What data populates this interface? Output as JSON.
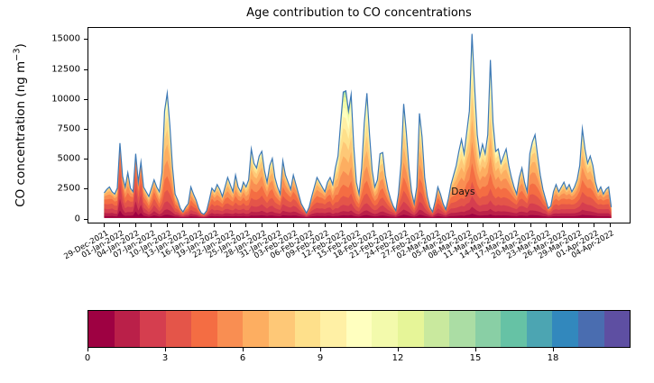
{
  "chart_data": {
    "type": "area",
    "subtype": "age-stacked-area",
    "title": "Age contribution to CO concentrations",
    "ylabel": {
      "prefix": "CO concentration (ng m",
      "sup": "−3",
      "suffix": ")"
    },
    "y_ticks": [
      0,
      2500,
      5000,
      7500,
      10000,
      12500,
      15000
    ],
    "ylim": [
      -400,
      16000
    ],
    "xlim_days": [
      -3,
      100
    ],
    "x_tick_days": [
      0,
      3,
      6,
      9,
      12,
      15,
      18,
      21,
      24,
      27,
      30,
      33,
      36,
      39,
      42,
      45,
      48,
      51,
      54,
      57,
      60,
      63,
      66,
      69,
      72,
      75,
      78,
      81,
      84,
      87,
      90,
      93,
      96
    ],
    "x_tick_labels": [
      "29-Dec-2021",
      "01-Jan-2022",
      "04-Jan-2022",
      "07-Jan-2022",
      "10-Jan-2022",
      "13-Jan-2022",
      "16-Jan-2022",
      "19-Jan-2022",
      "22-Jan-2022",
      "25-Jan-2022",
      "28-Jan-2022",
      "31-Jan-2022",
      "03-Feb-2022",
      "06-Feb-2022",
      "09-Feb-2022",
      "12-Feb-2022",
      "15-Feb-2022",
      "18-Feb-2022",
      "21-Feb-2022",
      "24-Feb-2022",
      "27-Feb-2022",
      "02-Mar-2022",
      "05-Mar-2022",
      "08-Mar-2022",
      "11-Mar-2022",
      "14-Mar-2022",
      "17-Mar-2022",
      "20-Mar-2022",
      "23-Mar-2022",
      "26-Mar-2022",
      "29-Mar-2022",
      "01-Apr-2022",
      "04-Apr-2022"
    ],
    "points_per_day": 2,
    "start_date": "29-Dec-2021",
    "totals": [
      2100,
      2400,
      2600,
      2200,
      2000,
      2500,
      6300,
      3500,
      2600,
      3800,
      2500,
      2200,
      5400,
      3000,
      4700,
      2600,
      2200,
      1800,
      2500,
      3200,
      2600,
      2200,
      3800,
      9000,
      10500,
      7800,
      4300,
      2000,
      1500,
      800,
      500,
      900,
      1200,
      2600,
      2000,
      1500,
      800,
      400,
      300,
      600,
      1500,
      2500,
      2200,
      2800,
      2400,
      1800,
      2600,
      3400,
      2800,
      2200,
      3600,
      2600,
      2200,
      3000,
      2600,
      3200,
      5800,
      4600,
      4200,
      5200,
      5600,
      4000,
      3000,
      4400,
      5000,
      3400,
      2600,
      2000,
      4800,
      3600,
      3000,
      2400,
      3600,
      2800,
      2000,
      1200,
      800,
      400,
      900,
      1800,
      2600,
      3400,
      3000,
      2600,
      2200,
      3000,
      3400,
      2800,
      4200,
      5200,
      8000,
      10600,
      10700,
      9000,
      10400,
      6000,
      3000,
      2000,
      4200,
      8000,
      10500,
      7000,
      4000,
      2600,
      3200,
      5400,
      5500,
      3600,
      2400,
      1600,
      1000,
      600,
      2000,
      4600,
      9600,
      7200,
      4200,
      2200,
      1200,
      2600,
      8800,
      6800,
      3400,
      1800,
      900,
      500,
      1400,
      2600,
      2000,
      1200,
      700,
      1600,
      2800,
      3600,
      4400,
      5600,
      6600,
      5400,
      7200,
      9000,
      15500,
      11000,
      7000,
      5200,
      6200,
      5400,
      7000,
      13300,
      8000,
      5600,
      5800,
      4600,
      5200,
      5800,
      4400,
      3400,
      2600,
      2000,
      3400,
      4200,
      3000,
      2200,
      5400,
      6400,
      7000,
      5200,
      3600,
      2400,
      1600,
      800,
      1000,
      2200,
      2800,
      2200,
      2600,
      3000,
      2400,
      2800,
      2200,
      2600,
      3200,
      4400,
      7500,
      5800,
      4600,
      5200,
      4400,
      3000,
      2200,
      2600,
      2000,
      2400,
      2600,
      900
    ],
    "mean_age_days": [
      3.5,
      4.0,
      4.2,
      3.6,
      3.8,
      4.4,
      3.0,
      3.4,
      4.0,
      4.5,
      3.6,
      3.2,
      3.0,
      3.5,
      3.2,
      3.8,
      4.0,
      4.5,
      4.2,
      3.8,
      4.0,
      4.6,
      5.0,
      6.0,
      6.2,
      5.8,
      5.0,
      4.4,
      4.0,
      3.6,
      3.2,
      3.6,
      4.0,
      4.4,
      4.2,
      3.8,
      3.4,
      3.0,
      2.8,
      3.2,
      3.6,
      4.0,
      4.2,
      4.6,
      4.4,
      4.0,
      4.2,
      4.8,
      4.6,
      4.2,
      4.8,
      4.4,
      4.0,
      4.4,
      4.6,
      5.0,
      5.4,
      5.0,
      4.8,
      5.2,
      5.0,
      4.6,
      4.4,
      4.8,
      5.0,
      4.6,
      4.2,
      3.8,
      4.6,
      4.2,
      4.0,
      3.6,
      4.2,
      3.8,
      3.6,
      3.2,
      3.0,
      2.8,
      3.2,
      3.8,
      4.2,
      4.6,
      4.4,
      4.0,
      3.8,
      4.2,
      4.4,
      4.8,
      5.2,
      5.8,
      6.4,
      7.0,
      7.2,
      6.8,
      6.6,
      6.0,
      5.0,
      4.4,
      5.0,
      6.0,
      6.6,
      6.0,
      5.2,
      4.6,
      4.8,
      5.4,
      5.2,
      4.6,
      4.2,
      3.8,
      3.2,
      3.0,
      3.8,
      4.8,
      6.0,
      5.6,
      4.8,
      4.2,
      3.8,
      4.2,
      5.8,
      5.4,
      4.6,
      4.0,
      3.4,
      3.0,
      3.6,
      4.0,
      3.8,
      3.4,
      3.0,
      3.6,
      4.2,
      4.8,
      5.2,
      5.6,
      5.8,
      5.4,
      5.6,
      6.0,
      6.6,
      6.2,
      5.6,
      5.2,
      5.4,
      5.0,
      5.6,
      6.8,
      6.0,
      5.4,
      5.2,
      4.8,
      5.0,
      5.4,
      4.8,
      4.4,
      4.0,
      3.6,
      4.2,
      4.6,
      4.0,
      3.6,
      4.8,
      5.2,
      5.6,
      5.0,
      4.4,
      4.0,
      3.4,
      3.0,
      3.2,
      4.0,
      4.4,
      4.0,
      4.2,
      4.6,
      4.0,
      4.4,
      3.8,
      4.2,
      4.4,
      4.8,
      5.4,
      5.0,
      4.6,
      5.0,
      4.8,
      4.2,
      3.8,
      4.2,
      3.6,
      4.0,
      4.2,
      3.4
    ],
    "line_color": "#3c78b5",
    "colormap_name": "Spectral",
    "colormap": [
      "#9e0142",
      "#ba2049",
      "#d53e4f",
      "#e45549",
      "#f46d43",
      "#f98e52",
      "#fdae61",
      "#fec877",
      "#fee08b",
      "#fff0a5",
      "#ffffbf",
      "#f3faac",
      "#e6f598",
      "#c9e99e",
      "#abdda4",
      "#89cfa5",
      "#66c2a5",
      "#4ca5b2",
      "#3288bd",
      "#4a6db0",
      "#5e4fa2"
    ],
    "colorbar": {
      "label": "Days",
      "ticks": [
        0,
        3,
        6,
        9,
        12,
        15,
        18
      ],
      "tick_labels": [
        "0",
        "3",
        "6",
        "9",
        "12",
        "15",
        "18"
      ],
      "vmin": 0,
      "vmax": 21
    }
  }
}
